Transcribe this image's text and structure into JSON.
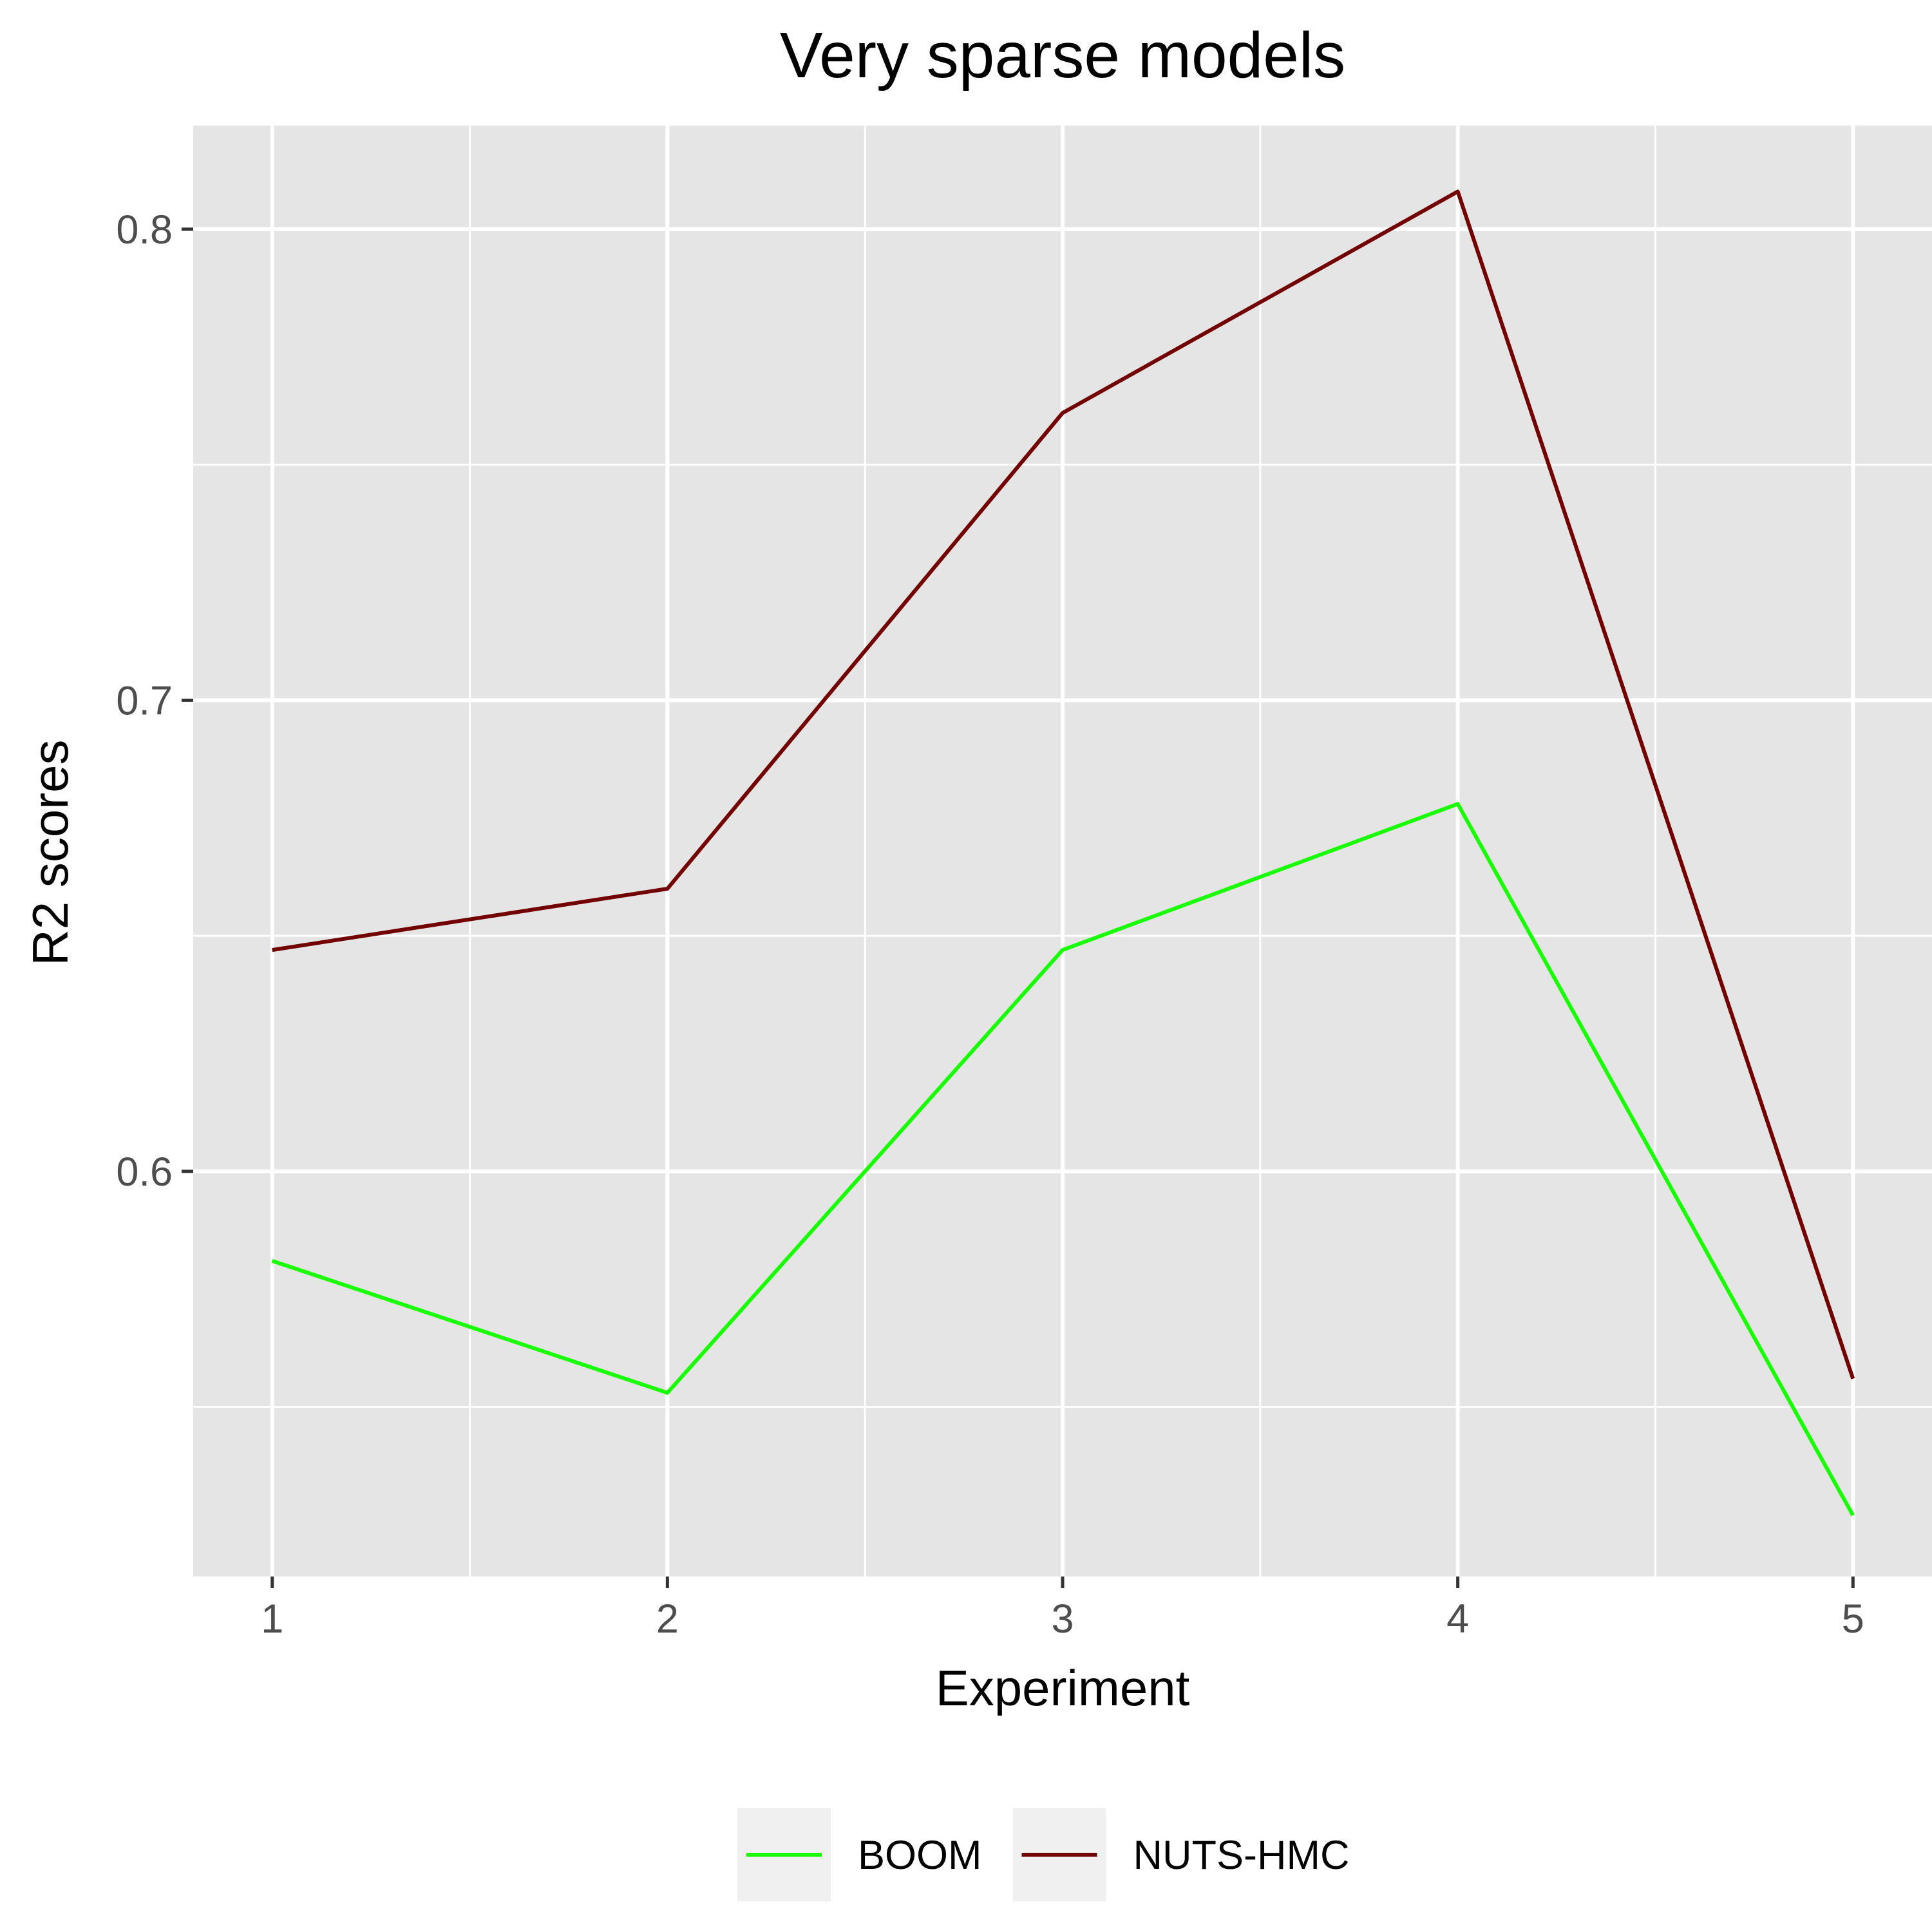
{
  "chart_data": {
    "type": "line",
    "title": "Very sparse models",
    "xlabel": "Experiment",
    "ylabel": "R2 scores",
    "x": [
      1,
      2,
      3,
      4,
      5
    ],
    "xlim": [
      0.8,
      5.2
    ],
    "ylim": [
      0.514,
      0.822
    ],
    "yticks": [
      0.6,
      0.7,
      0.8
    ],
    "ytick_labels": [
      "0.6",
      "0.7",
      "0.8"
    ],
    "xticks": [
      1,
      2,
      3,
      4,
      5
    ],
    "xtick_labels": [
      "1",
      "2",
      "3",
      "4",
      "5"
    ],
    "grid": true,
    "legend_position": "bottom",
    "series": [
      {
        "name": "BOOM",
        "color": "#1aff00",
        "values": [
          0.581,
          0.553,
          0.647,
          0.678,
          0.527
        ]
      },
      {
        "name": "NUTS-HMC",
        "color": "#730000",
        "values": [
          0.647,
          0.66,
          0.761,
          0.808,
          0.556
        ]
      }
    ]
  }
}
